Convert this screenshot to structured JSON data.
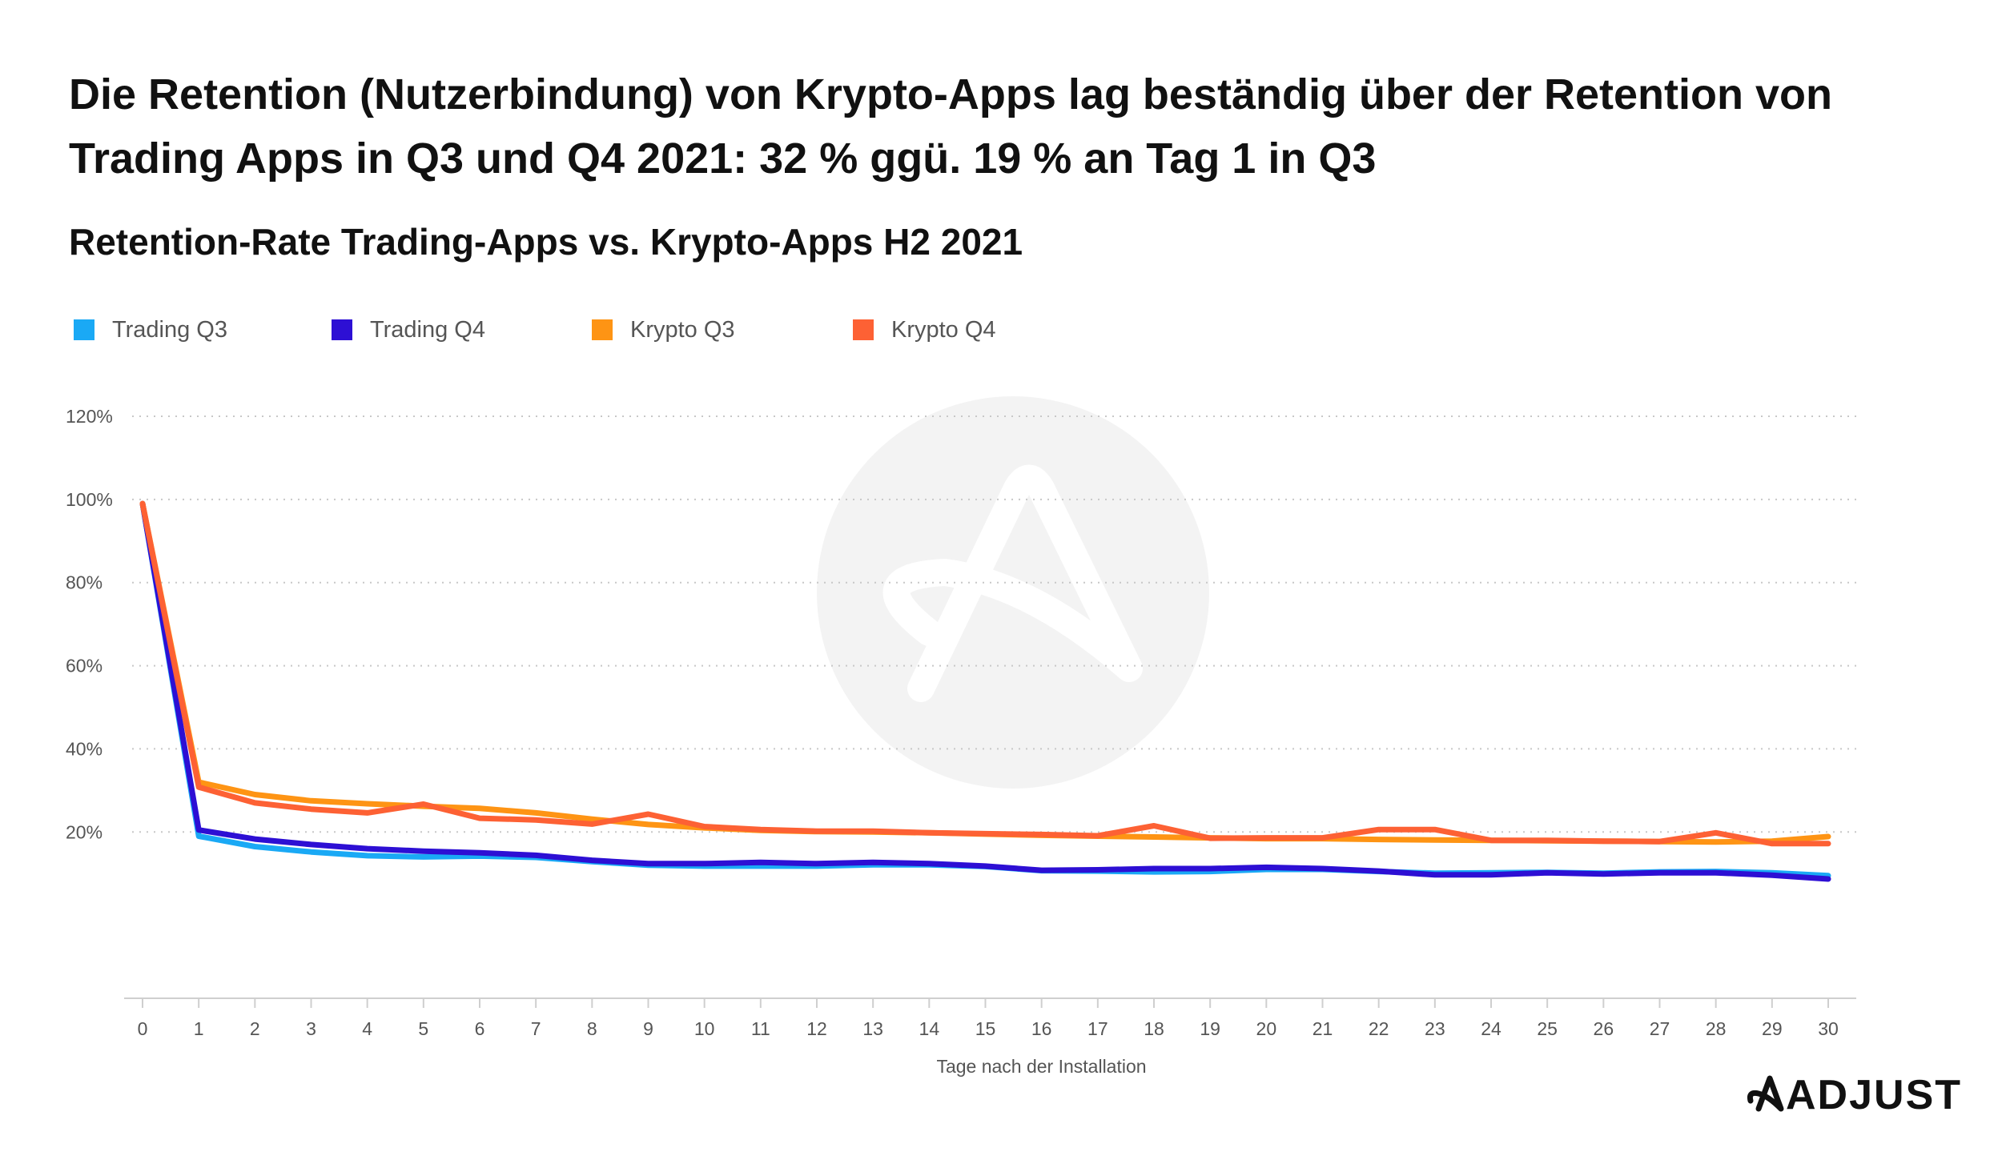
{
  "header": {
    "title": "Die Retention (Nutzerbindung) von Krypto-Apps lag beständig über der Retention von Trading Apps in Q3 und Q4 2021: 32 % ggü. 19 % an Tag 1 in Q3",
    "subtitle": "Retention-Rate Trading-Apps vs. Krypto-Apps H2 2021"
  },
  "brand": {
    "logo_text": "ADJUST",
    "watermark_icon": "adjust-logo-icon"
  },
  "chart_data": {
    "type": "line",
    "title": "Retention-Rate Trading-Apps vs. Krypto-Apps H2 2021",
    "xlabel": "Tage nach der Installation",
    "ylabel": "",
    "x": [
      0,
      1,
      2,
      3,
      4,
      5,
      6,
      7,
      8,
      9,
      10,
      11,
      12,
      13,
      14,
      15,
      16,
      17,
      18,
      19,
      20,
      21,
      22,
      23,
      24,
      25,
      26,
      27,
      28,
      29,
      30
    ],
    "ylim": [
      -20,
      120
    ],
    "yticks": [
      20,
      40,
      60,
      80,
      100,
      120
    ],
    "ytick_labels": [
      "20%",
      "40%",
      "60%",
      "80%",
      "100%",
      "120%"
    ],
    "grid": "horizontal dotted",
    "legend_position": "top-left",
    "series": [
      {
        "name": "Trading Q3",
        "color": "#1aa9f5",
        "values": [
          99,
          19,
          16.5,
          15.2,
          14.3,
          14,
          14.2,
          13.9,
          12.9,
          12,
          11.8,
          11.8,
          11.8,
          12.1,
          12.1,
          11.7,
          10.7,
          10.6,
          10.4,
          10.5,
          11,
          11,
          10.5,
          10.1,
          10.2,
          10.3,
          10.1,
          10.4,
          10.5,
          10.2,
          9.5
        ]
      },
      {
        "name": "Trading Q4",
        "color": "#2d0fd4",
        "values": [
          99,
          20.5,
          18.3,
          17,
          16,
          15.4,
          15,
          14.4,
          13.2,
          12.4,
          12.4,
          12.7,
          12.4,
          12.7,
          12.4,
          11.8,
          10.8,
          10.9,
          11.2,
          11.2,
          11.5,
          11.2,
          10.6,
          9.7,
          9.7,
          10.2,
          9.9,
          10.2,
          10.2,
          9.6,
          8.7
        ]
      },
      {
        "name": "Krypto Q3",
        "color": "#fe9414",
        "values": [
          99,
          32,
          29,
          27.5,
          26.8,
          26.2,
          25.7,
          24.6,
          23.1,
          21.8,
          21,
          20.4,
          20.1,
          20,
          19.8,
          19.5,
          19.2,
          19,
          18.8,
          18.6,
          18.4,
          18.4,
          18.2,
          18.1,
          18,
          17.9,
          17.8,
          17.7,
          17.6,
          17.8,
          18.9
        ]
      },
      {
        "name": "Krypto Q4",
        "color": "#fd6134",
        "values": [
          99,
          30.8,
          27,
          25.5,
          24.6,
          26.7,
          23.3,
          22.9,
          21.9,
          24.3,
          21.3,
          20.6,
          20.2,
          20.2,
          19.8,
          19.6,
          19.4,
          19.1,
          21.5,
          18.5,
          18.6,
          18.6,
          20.6,
          20.6,
          18,
          18,
          17.8,
          17.7,
          19.8,
          17.2,
          17.2
        ]
      }
    ]
  }
}
